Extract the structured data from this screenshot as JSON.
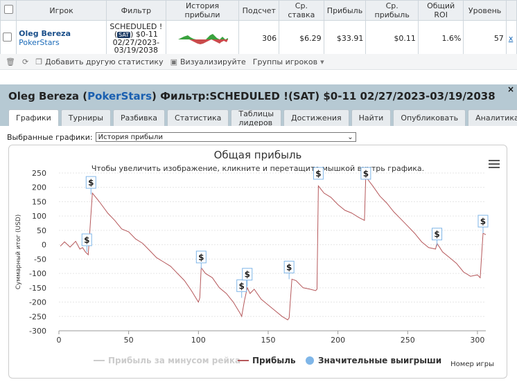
{
  "table": {
    "headers": [
      "Игрок",
      "Фильтр",
      "История прибыли",
      "Подсчет",
      "Ср. ставка",
      "Прибыль",
      "Ср. прибыль",
      "Общий ROI",
      "Уровень"
    ],
    "row": {
      "player": "Oleg Bereza",
      "room": "PokerStars",
      "filter_line1": "SCHEDULED !",
      "filter_badge": "SAT",
      "filter_line2": "$0-11",
      "filter_line3": "02/27/2023-",
      "filter_line4": "03/19/2038",
      "count": "306",
      "avg_stake": "$6.29",
      "profit": "$33.91",
      "avg_profit": "$0.11",
      "roi": "1.6%",
      "level": "57",
      "delete": "x"
    }
  },
  "toolbar": {
    "add_stats": "Добавить другую статистику",
    "visualize": "Визуализируйте",
    "player_groups": "Группы игроков"
  },
  "panel": {
    "title_player": "Oleg Bereza",
    "title_room": "PokerStars",
    "title_filter": "Фильтр:SCHEDULED !(SAT) $0-11 02/27/2023-03/19/2038",
    "close": "×",
    "tabs": [
      "Графики",
      "Турниры",
      "Разбивка",
      "Статистика",
      "Таблицы лидеров",
      "Достижения",
      "Найти",
      "Опубликовать",
      "Аналитика"
    ],
    "selected_label": "Выбранные графики:",
    "selected_value": "История прибыли"
  },
  "chart_data": {
    "type": "line",
    "title": "Общая прибыль",
    "subtitle": "Чтобы увеличить изображение, кликните и перетащите мышкой внутрь графика.",
    "xlabel": "Номер игры",
    "ylabel": "Суммарный итог (USD)",
    "xlim": [
      0,
      306
    ],
    "ylim": [
      -300,
      250
    ],
    "xticks": [
      0,
      50,
      100,
      150,
      200,
      250,
      300
    ],
    "yticks": [
      250,
      200,
      150,
      100,
      50,
      0,
      -50,
      -100,
      -150,
      -200,
      -250,
      -300
    ],
    "legend": [
      "Прибыль за минусом рейка",
      "Прибыль",
      "Значительные выигрыши"
    ],
    "legend_placement": "bottom",
    "series": [
      {
        "name": "Прибыль",
        "color": "#b5575a",
        "x": [
          1,
          4,
          8,
          12,
          15,
          17,
          19,
          21,
          24,
          29,
          35,
          40,
          45,
          50,
          55,
          60,
          65,
          70,
          75,
          80,
          85,
          90,
          95,
          100,
          101,
          102,
          105,
          110,
          115,
          120,
          125,
          130,
          131,
          133,
          135,
          137,
          140,
          145,
          150,
          155,
          160,
          164,
          165,
          167,
          170,
          175,
          180,
          184,
          185,
          186,
          190,
          195,
          200,
          205,
          210,
          215,
          219,
          220,
          221,
          225,
          230,
          235,
          240,
          245,
          250,
          255,
          260,
          265,
          270,
          271,
          273,
          275,
          280,
          285,
          290,
          295,
          300,
          302,
          304,
          306
        ],
        "y": [
          -5,
          10,
          -8,
          12,
          -15,
          -10,
          -25,
          -35,
          180,
          150,
          110,
          85,
          55,
          45,
          20,
          5,
          -20,
          -45,
          -60,
          -75,
          -100,
          -125,
          -160,
          -200,
          -185,
          -80,
          -100,
          -115,
          -150,
          -170,
          -200,
          -240,
          -250,
          -195,
          -150,
          -170,
          -155,
          -190,
          -210,
          -230,
          -250,
          -262,
          -255,
          -120,
          -125,
          -150,
          -155,
          -160,
          -155,
          205,
          180,
          165,
          140,
          120,
          110,
          95,
          85,
          250,
          230,
          205,
          170,
          145,
          115,
          90,
          65,
          40,
          10,
          -10,
          -15,
          5,
          -10,
          -25,
          -45,
          -65,
          -95,
          -110,
          -105,
          -115,
          40,
          35
        ]
      }
    ],
    "big_wins": [
      {
        "x": 20,
        "y": -25
      },
      {
        "x": 23,
        "y": 175
      },
      {
        "x": 102,
        "y": -85
      },
      {
        "x": 131,
        "y": -185
      },
      {
        "x": 135,
        "y": -145
      },
      {
        "x": 165,
        "y": -120
      },
      {
        "x": 186,
        "y": 250
      },
      {
        "x": 220,
        "y": 250
      },
      {
        "x": 271,
        "y": -5
      },
      {
        "x": 304,
        "y": 40
      }
    ]
  }
}
